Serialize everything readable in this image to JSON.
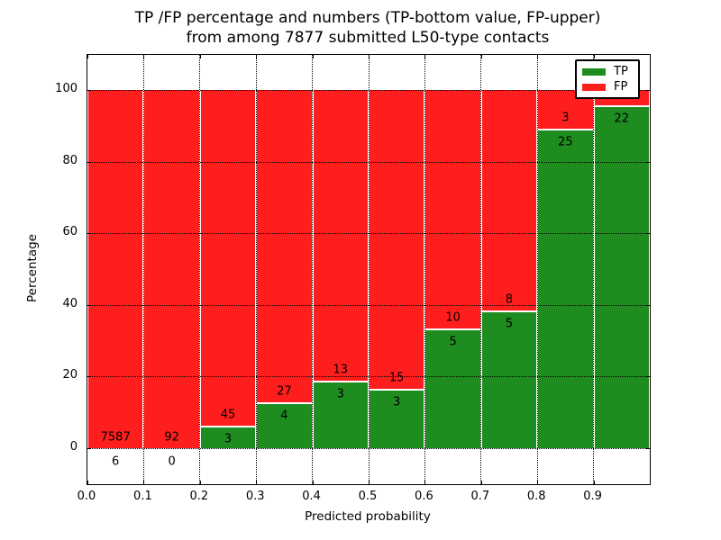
{
  "figure": {
    "title_line1": "TP /FP percentage and numbers (TP-bottom value, FP-upper)",
    "title_line2": "from among 7877 submitted L50-type contacts",
    "background": "#ffffff"
  },
  "colors": {
    "tp": "#1e8c1e",
    "fp": "#ff1e1e",
    "grid": "#000000",
    "frame": "#000000",
    "text": "#000000",
    "bar_edge": "#ffffff"
  },
  "chart_data": {
    "type": "bar",
    "stacked": true,
    "title": "TP /FP percentage and numbers (TP-bottom value, FP-upper) from among 7877 submitted L50-type contacts",
    "xlabel": "Predicted probability",
    "ylabel": "Percentage",
    "xlim": [
      0.0,
      1.0
    ],
    "ylim": [
      -10,
      110
    ],
    "grid": "dotted, at x every 0.1 and y every 20",
    "x_tick_labels": [
      "0.0",
      "0.1",
      "0.2",
      "0.3",
      "0.4",
      "0.5",
      "0.6",
      "0.7",
      "0.8",
      "0.9"
    ],
    "y_tick_labels": [
      "0",
      "20",
      "40",
      "60",
      "80",
      "100"
    ],
    "y_tick_values": [
      0,
      20,
      40,
      60,
      80,
      100
    ],
    "legend": {
      "position": "upper right",
      "entries": [
        {
          "label": "TP",
          "color": "#1e8c1e"
        },
        {
          "label": "FP",
          "color": "#ff1e1e"
        }
      ]
    },
    "series_note": "Each 0.1-wide probability bin is a 100%-stacked bar: TP share (green, bottom) and FP share (red, top). Numbers printed on bars: TP count below boundary, FP count above boundary. FP count of last bin is hidden behind the legend.",
    "bins": [
      {
        "range": "0.0-0.1",
        "tp_count": 6,
        "fp_count": 7587,
        "tp_pct": 0.08
      },
      {
        "range": "0.1-0.2",
        "tp_count": 0,
        "fp_count": 92,
        "tp_pct": 0.0
      },
      {
        "range": "0.2-0.3",
        "tp_count": 3,
        "fp_count": 45,
        "tp_pct": 6.25
      },
      {
        "range": "0.3-0.4",
        "tp_count": 4,
        "fp_count": 27,
        "tp_pct": 12.9
      },
      {
        "range": "0.4-0.5",
        "tp_count": 3,
        "fp_count": 13,
        "tp_pct": 18.75
      },
      {
        "range": "0.5-0.6",
        "tp_count": 3,
        "fp_count": 15,
        "tp_pct": 16.67
      },
      {
        "range": "0.6-0.7",
        "tp_count": 5,
        "fp_count": 10,
        "tp_pct": 33.33
      },
      {
        "range": "0.7-0.8",
        "tp_count": 5,
        "fp_count": 8,
        "tp_pct": 38.46
      },
      {
        "range": "0.8-0.9",
        "tp_count": 25,
        "fp_count": 3,
        "tp_pct": 89.29
      },
      {
        "range": "0.9-1.0",
        "tp_count": 22,
        "fp_count": null,
        "tp_pct": 95.65
      }
    ]
  }
}
